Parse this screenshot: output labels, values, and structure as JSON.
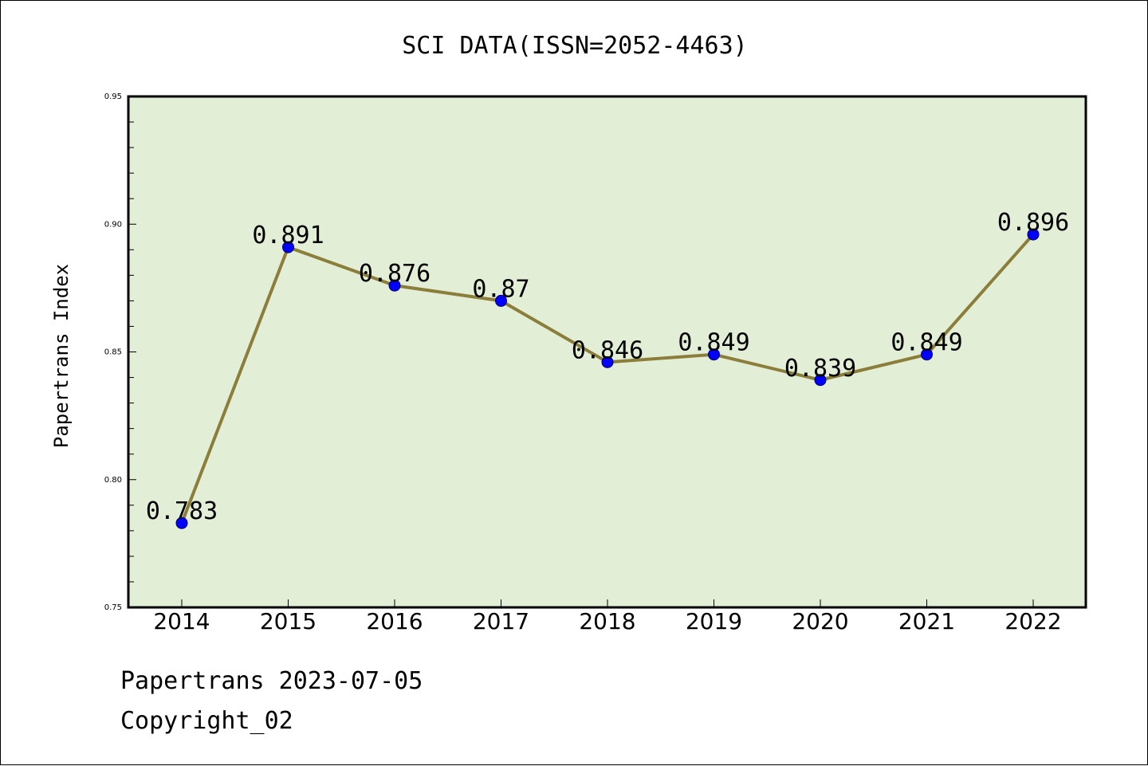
{
  "chart_data": {
    "type": "line",
    "title": "SCI DATA(ISSN=2052-4463)",
    "xlabel": "",
    "ylabel": "Papertrans Index",
    "categories": [
      "2014",
      "2015",
      "2016",
      "2017",
      "2018",
      "2019",
      "2020",
      "2021",
      "2022"
    ],
    "series": [
      {
        "values": [
          0.783,
          0.891,
          0.876,
          0.87,
          0.846,
          0.849,
          0.839,
          0.849,
          0.896
        ],
        "labels": [
          "0.783",
          "0.891",
          "0.876",
          "0.87",
          "0.846",
          "0.849",
          "0.839",
          "0.849",
          "0.896"
        ]
      }
    ],
    "ylim": [
      0.75,
      0.95
    ],
    "yticks": [
      "0.95",
      "0.90",
      "0.85",
      "0.80",
      "0.75"
    ],
    "grid": false,
    "legend": "none",
    "colors": {
      "plot_background": "#e2efd6",
      "line": "#8b7d3a",
      "marker": "#0000ff",
      "axes": "#000000"
    }
  },
  "footer": {
    "line1": "Papertrans 2023-07-05",
    "line2": "Copyright_02"
  }
}
